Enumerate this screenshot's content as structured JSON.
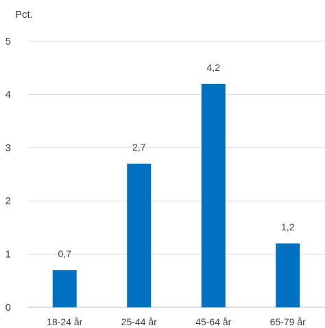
{
  "chart_data": {
    "type": "bar",
    "y_unit_label": "Pct.",
    "categories": [
      "18-24 år",
      "25-44 år",
      "45-64 år",
      "65-79 år"
    ],
    "values": [
      0.7,
      2.7,
      4.2,
      1.2
    ],
    "data_labels": [
      "0,7",
      "2,7",
      "4,2",
      "1,2"
    ],
    "ylim": [
      0,
      5
    ],
    "yticks": [
      0,
      1,
      2,
      3,
      4,
      5
    ],
    "ytick_labels": [
      "0",
      "1",
      "2",
      "3",
      "4",
      "5"
    ],
    "grid": true,
    "bar_color": "#0070c0",
    "grid_color": "#d9d9d9"
  }
}
